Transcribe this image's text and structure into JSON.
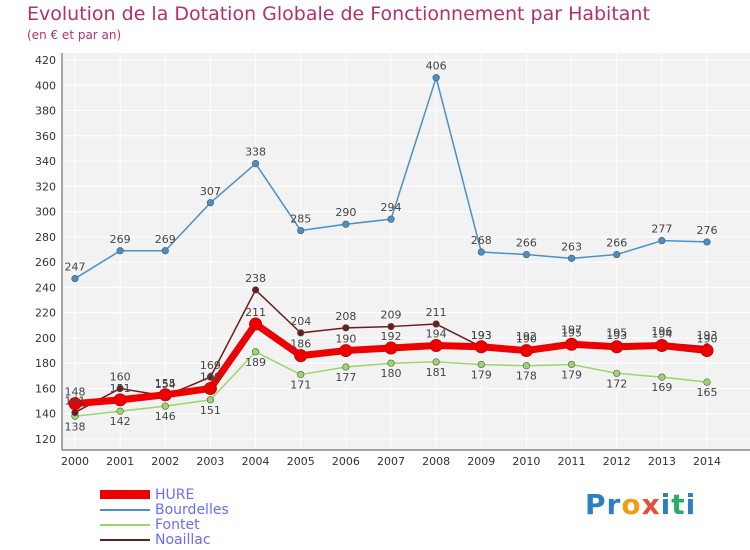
{
  "header": {
    "title": "Evolution de la Dotation Globale de Fonctionnement par Habitant",
    "subtitle": "(en € et par an)"
  },
  "chart_data": {
    "type": "line",
    "x": [
      2000,
      2001,
      2002,
      2003,
      2004,
      2005,
      2006,
      2007,
      2008,
      2009,
      2010,
      2011,
      2012,
      2013,
      2014
    ],
    "ylim": [
      120,
      420
    ],
    "yticks": [
      120,
      140,
      160,
      180,
      200,
      220,
      240,
      260,
      280,
      300,
      320,
      340,
      360,
      380,
      400,
      420
    ],
    "grid": true,
    "legend_position": "bottom-left",
    "series": [
      {
        "name": "Bourdelles",
        "color": "#4a90c8",
        "values": [
          247,
          269,
          269,
          307,
          338,
          285,
          290,
          294,
          406,
          268,
          266,
          263,
          266,
          277,
          276
        ]
      },
      {
        "name": "Fontet",
        "color": "#9ad66a",
        "values": [
          138,
          142,
          146,
          151,
          189,
          171,
          177,
          180,
          181,
          179,
          178,
          179,
          172,
          169,
          165
        ]
      },
      {
        "name": "Noaillac",
        "color": "#6b1d1d",
        "values": [
          141,
          160,
          154,
          169,
          238,
          204,
          208,
          209,
          211,
          193,
          192,
          197,
          195,
          196,
          193
        ]
      },
      {
        "name": "HURE",
        "color": "#ee0000",
        "values": [
          148,
          151,
          155,
          160,
          211,
          186,
          190,
          192,
          194,
          193,
          190,
          195,
          193,
          194,
          190
        ]
      }
    ]
  },
  "logo": {
    "text": "Proxiti"
  }
}
